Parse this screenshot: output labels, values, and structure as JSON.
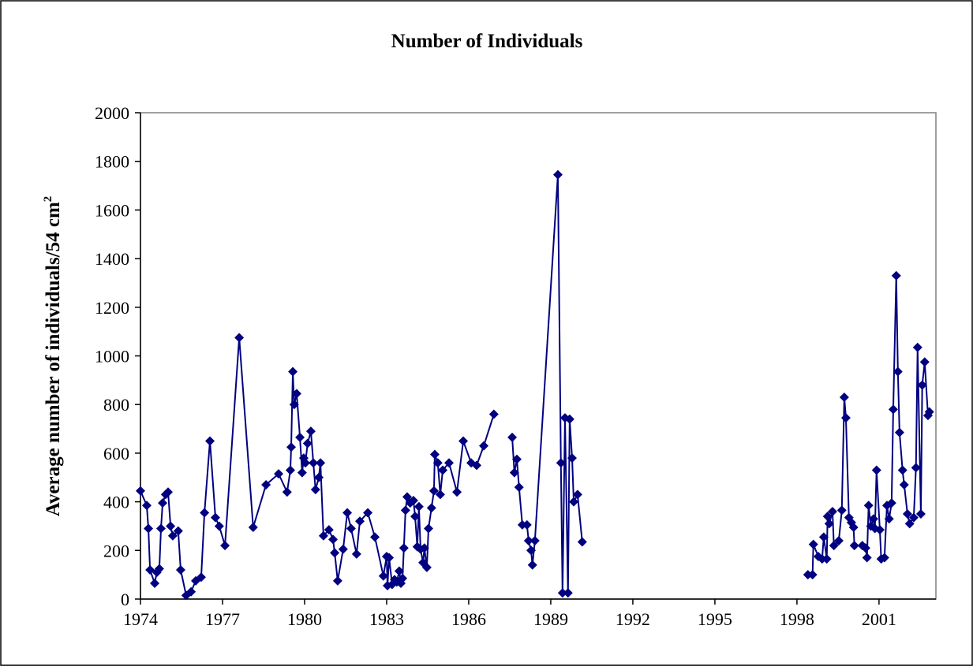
{
  "chart_data": {
    "type": "line",
    "title": "Number of Individuals",
    "y_label": "Average number of individuals/54 cm",
    "y_label_sup": "2",
    "color": "#000080",
    "marker": "diamond",
    "xlim": [
      1974,
      2003.08
    ],
    "xticks": [
      1974,
      1977,
      1980,
      1983,
      1986,
      1989,
      1992,
      1995,
      1998,
      2001
    ],
    "ylim": [
      0,
      2000
    ],
    "yticks": [
      0,
      200,
      400,
      600,
      800,
      1000,
      1200,
      1400,
      1600,
      1800,
      2000
    ],
    "grid": false,
    "x": [
      1974.0,
      1974.23,
      1974.29,
      1974.35,
      1974.52,
      1974.6,
      1974.69,
      1974.75,
      1974.81,
      1974.92,
      1975.01,
      1975.1,
      1975.18,
      1975.38,
      1975.47,
      1975.67,
      1975.85,
      1976.02,
      1976.22,
      1976.34,
      1976.54,
      1976.74,
      1976.88,
      1977.09,
      1977.61,
      1978.12,
      1978.59,
      1979.05,
      1979.36,
      1979.48,
      1979.51,
      1979.57,
      1979.62,
      1979.71,
      1979.83,
      1979.91,
      1979.97,
      1980.03,
      1980.11,
      1980.23,
      1980.32,
      1980.4,
      1980.52,
      1980.58,
      1980.69,
      1980.89,
      1981.04,
      1981.1,
      1981.21,
      1981.41,
      1981.56,
      1981.7,
      1981.9,
      1982.02,
      1982.31,
      1982.57,
      1982.88,
      1983.0,
      1983.03,
      1983.09,
      1983.2,
      1983.29,
      1983.37,
      1983.46,
      1983.52,
      1983.58,
      1983.63,
      1983.69,
      1983.75,
      1983.86,
      1983.98,
      1984.04,
      1984.12,
      1984.18,
      1984.24,
      1984.33,
      1984.38,
      1984.47,
      1984.53,
      1984.64,
      1984.73,
      1984.76,
      1984.87,
      1984.96,
      1985.05,
      1985.28,
      1985.57,
      1985.8,
      1986.09,
      1986.29,
      1986.55,
      1986.92,
      null,
      1987.59,
      1987.67,
      1987.76,
      1987.84,
      1987.96,
      1988.13,
      1988.19,
      1988.28,
      1988.33,
      1988.42,
      1989.26,
      1989.37,
      1989.43,
      1989.52,
      1989.63,
      1989.69,
      1989.78,
      1989.84,
      1989.98,
      1990.15,
      null,
      1998.4,
      1998.57,
      1998.6,
      1998.78,
      1998.92,
      1998.98,
      1999.09,
      1999.12,
      1999.18,
      1999.3,
      1999.35,
      1999.53,
      1999.64,
      1999.73,
      1999.79,
      1999.9,
      1999.99,
      2000.07,
      2000.1,
      2000.39,
      2000.51,
      2000.56,
      2000.62,
      2000.7,
      2000.8,
      2000.85,
      2000.91,
      2001.03,
      2001.08,
      2001.2,
      2001.29,
      2001.37,
      2001.46,
      2001.52,
      2001.63,
      2001.69,
      2001.75,
      2001.86,
      2001.92,
      2002.04,
      2002.12,
      2002.27,
      2002.35,
      2002.41,
      2002.53,
      2002.58,
      2002.67,
      2002.79,
      2002.84
    ],
    "values": [
      445,
      385,
      290,
      120,
      65,
      110,
      125,
      290,
      395,
      430,
      440,
      300,
      260,
      280,
      120,
      15,
      30,
      75,
      90,
      355,
      650,
      335,
      300,
      220,
      1075,
      295,
      470,
      515,
      440,
      530,
      625,
      935,
      800,
      845,
      665,
      520,
      580,
      560,
      640,
      690,
      560,
      450,
      500,
      560,
      260,
      285,
      245,
      190,
      75,
      205,
      355,
      290,
      185,
      320,
      355,
      255,
      95,
      175,
      55,
      170,
      60,
      80,
      70,
      115,
      65,
      85,
      210,
      365,
      420,
      395,
      405,
      340,
      215,
      380,
      205,
      150,
      210,
      130,
      290,
      375,
      445,
      595,
      560,
      430,
      530,
      560,
      440,
      650,
      560,
      550,
      630,
      760,
      null,
      665,
      520,
      575,
      460,
      305,
      305,
      240,
      200,
      140,
      240,
      1745,
      560,
      25,
      745,
      25,
      740,
      580,
      400,
      430,
      235,
      null,
      100,
      100,
      225,
      175,
      165,
      255,
      165,
      340,
      310,
      360,
      220,
      240,
      365,
      830,
      745,
      335,
      315,
      295,
      220,
      220,
      210,
      170,
      385,
      300,
      330,
      290,
      530,
      285,
      165,
      170,
      385,
      330,
      395,
      780,
      1330,
      935,
      685,
      530,
      470,
      350,
      310,
      335,
      540,
      1035,
      350,
      880,
      975,
      755,
      770
    ]
  }
}
